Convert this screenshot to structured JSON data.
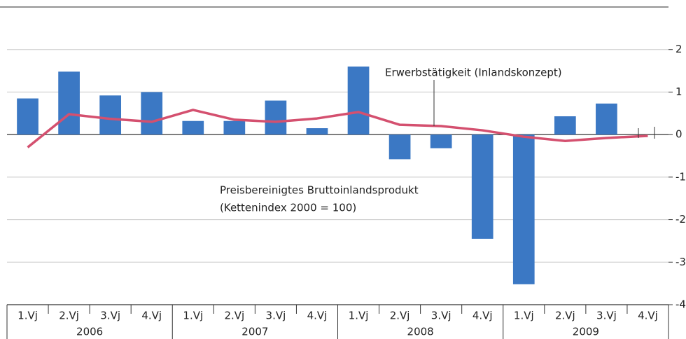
{
  "chart_data": {
    "type": "bar-line",
    "categories": [
      "1.Vj",
      "2.Vj",
      "3.Vj",
      "4.Vj",
      "1.Vj",
      "2.Vj",
      "3.Vj",
      "4.Vj",
      "1.Vj",
      "2.Vj",
      "3.Vj",
      "4.Vj",
      "1.Vj",
      "2.Vj",
      "3.Vj",
      "4.Vj"
    ],
    "years": [
      "2006",
      "2007",
      "2008",
      "2009"
    ],
    "series": [
      {
        "name": [
          "Preisbereinigtes Bruttoinlandsprodukt",
          "(Kettenindex 2000 = 100)"
        ],
        "type": "bar",
        "color": "#3b78c4",
        "values": [
          0.85,
          1.48,
          0.92,
          1.0,
          0.32,
          0.32,
          0.8,
          0.15,
          1.6,
          -0.58,
          -0.32,
          -2.45,
          -3.52,
          0.43,
          0.73,
          null
        ]
      },
      {
        "name": "Erwerbstätigkeit (Inlandskonzept)",
        "type": "line",
        "color": "#d4506f",
        "values": [
          -0.3,
          0.48,
          0.37,
          0.3,
          0.58,
          0.35,
          0.3,
          0.38,
          0.53,
          0.23,
          0.2,
          0.1,
          -0.05,
          -0.15,
          -0.08,
          -0.03
        ]
      }
    ],
    "ylim": [
      -4,
      3
    ],
    "yticks": [
      -4,
      -3,
      -2,
      -1,
      0,
      1,
      2
    ],
    "grid": true
  }
}
